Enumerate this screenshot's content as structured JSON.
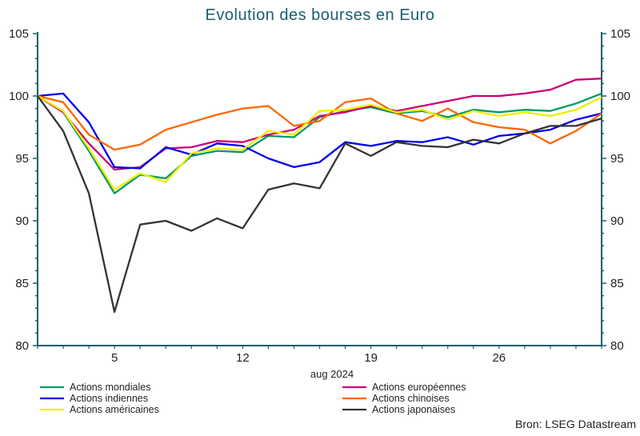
{
  "chart_data": {
    "type": "line",
    "title": "Evolution des bourses en Euro",
    "xlabel": "aug 2024",
    "source": "Bron: LSEG Datastream",
    "x": [
      "2024-07-31",
      "2024-08-01",
      "2024-08-02",
      "2024-08-05",
      "2024-08-06",
      "2024-08-07",
      "2024-08-08",
      "2024-08-09",
      "2024-08-12",
      "2024-08-13",
      "2024-08-14",
      "2024-08-15",
      "2024-08-16",
      "2024-08-19",
      "2024-08-20",
      "2024-08-21",
      "2024-08-22",
      "2024-08-23",
      "2024-08-26",
      "2024-08-27",
      "2024-08-28",
      "2024-08-29",
      "2024-08-30"
    ],
    "x_tick_labels": [
      {
        "date": "2024-08-05",
        "label": "5"
      },
      {
        "date": "2024-08-12",
        "label": "12"
      },
      {
        "date": "2024-08-19",
        "label": "19"
      },
      {
        "date": "2024-08-26",
        "label": "26"
      }
    ],
    "ylim": [
      80,
      105
    ],
    "y_ticks": [
      80,
      85,
      90,
      95,
      100,
      105
    ],
    "y_axis_sides": "both",
    "grid": false,
    "legend_placement": "bottom",
    "series": [
      {
        "name": "Actions mondiales",
        "color": "#009966",
        "values": [
          100,
          98.7,
          95.6,
          92.2,
          93.7,
          93.4,
          95.2,
          95.6,
          95.5,
          96.8,
          96.7,
          98.3,
          98.8,
          99.1,
          98.6,
          98.8,
          98.3,
          98.9,
          98.7,
          98.9,
          98.8,
          99.4,
          100.2
        ]
      },
      {
        "name": "Actions européennes",
        "color": "#cc0077",
        "values": [
          100,
          98.7,
          96.2,
          94.1,
          94.3,
          95.8,
          95.9,
          96.4,
          96.3,
          96.9,
          97.3,
          98.4,
          98.7,
          99.2,
          98.8,
          99.2,
          99.6,
          100.0,
          100.0,
          100.2,
          100.5,
          101.3,
          101.4
        ]
      },
      {
        "name": "Actions indiennes",
        "color": "#0000ee",
        "values": [
          100,
          100.2,
          97.9,
          94.3,
          94.2,
          95.9,
          95.3,
          96.2,
          96.0,
          95.0,
          94.3,
          94.7,
          96.3,
          96.0,
          96.4,
          96.3,
          96.7,
          96.1,
          96.8,
          97.0,
          97.3,
          98.1,
          98.6
        ]
      },
      {
        "name": "Actions chinoises",
        "color": "#ff6600",
        "values": [
          100,
          99.5,
          96.9,
          95.7,
          96.1,
          97.3,
          97.9,
          98.5,
          99.0,
          99.2,
          97.6,
          98.0,
          99.5,
          99.8,
          98.6,
          98.0,
          99.0,
          97.9,
          97.5,
          97.3,
          96.2,
          97.2,
          98.6
        ]
      },
      {
        "name": "Actions américaines",
        "color": "#eeee00",
        "values": [
          100,
          98.8,
          95.8,
          92.5,
          93.8,
          93.1,
          95.4,
          95.8,
          95.7,
          97.2,
          96.9,
          98.8,
          98.9,
          99.3,
          98.7,
          98.9,
          98.1,
          98.8,
          98.4,
          98.7,
          98.4,
          98.9,
          99.9
        ]
      },
      {
        "name": "Actions japonaises",
        "color": "#333333",
        "values": [
          100,
          97.2,
          92.2,
          82.7,
          89.7,
          90.0,
          89.2,
          90.2,
          89.4,
          92.5,
          93.0,
          92.6,
          96.2,
          95.2,
          96.3,
          96.0,
          95.9,
          96.5,
          96.2,
          97.0,
          97.6,
          97.6,
          98.2
        ]
      }
    ]
  }
}
